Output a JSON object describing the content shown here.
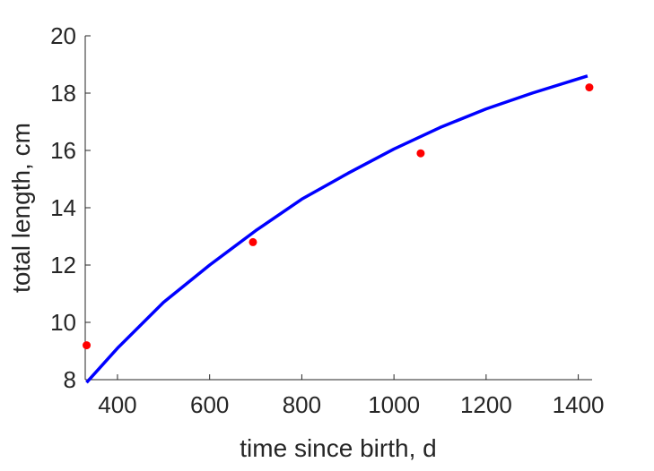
{
  "chart_data": {
    "type": "line",
    "title": "",
    "xlabel": "time since birth, d",
    "ylabel": "total length, cm",
    "xlim": [
      330,
      1430
    ],
    "ylim": [
      8,
      20
    ],
    "xticks": [
      400,
      600,
      800,
      1000,
      1200,
      1400
    ],
    "yticks": [
      8,
      10,
      12,
      14,
      16,
      18,
      20
    ],
    "grid": false,
    "legend": "none",
    "series": [
      {
        "type": "line",
        "color": "#0000ff",
        "x": [
          333,
          400,
          500,
          600,
          700,
          800,
          900,
          1000,
          1100,
          1200,
          1300,
          1420
        ],
        "y": [
          7.9,
          9.1,
          10.7,
          12.0,
          13.2,
          14.3,
          15.2,
          16.05,
          16.8,
          17.45,
          18.0,
          18.6
        ]
      },
      {
        "type": "scatter",
        "color": "#ff0000",
        "x": [
          333,
          694,
          1058,
          1424
        ],
        "y": [
          9.2,
          12.8,
          15.9,
          18.2
        ]
      }
    ]
  }
}
